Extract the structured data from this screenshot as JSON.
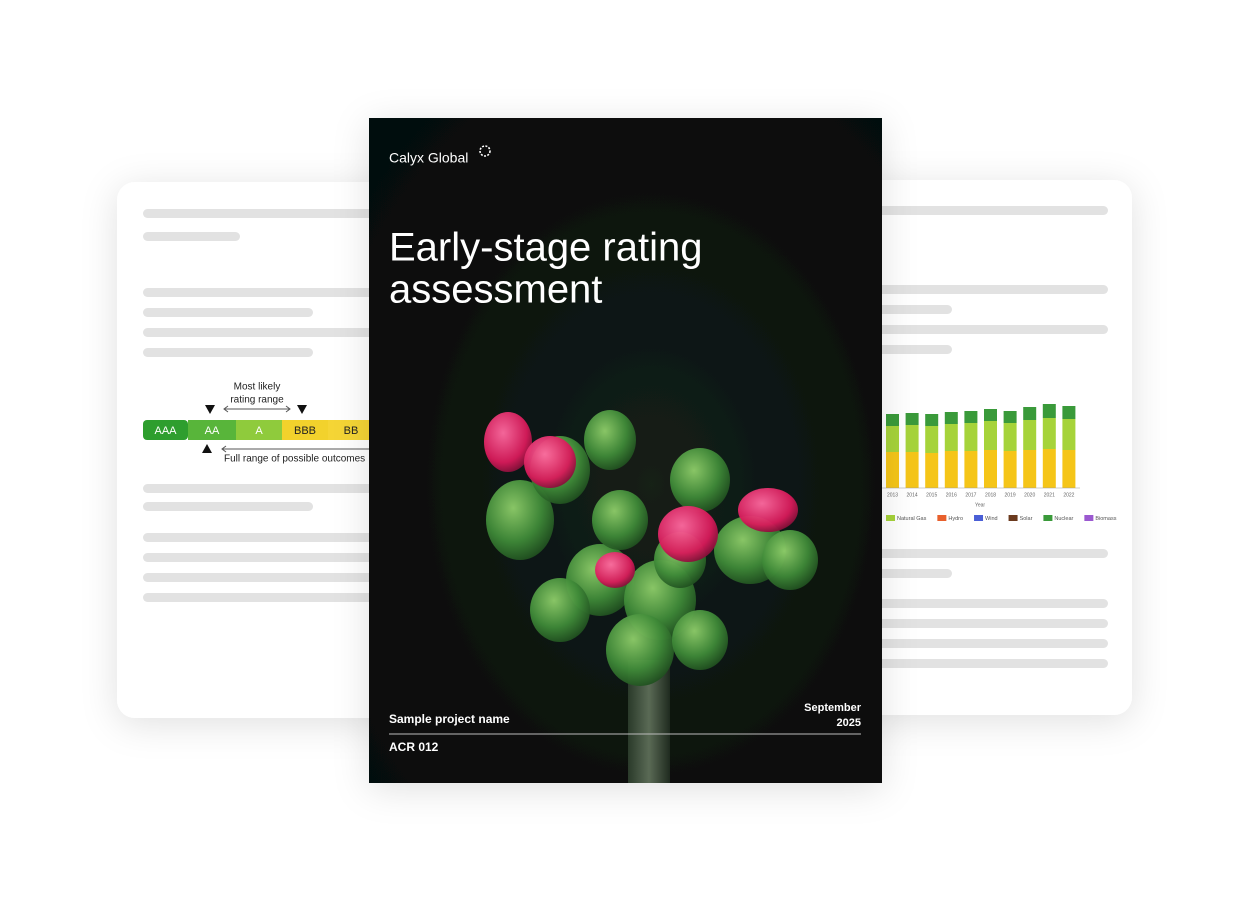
{
  "cover": {
    "brand": "Calyx Global",
    "title_lines": [
      "Early-stage rating",
      "assessment"
    ],
    "project": "Sample project name",
    "code": "ACR 012",
    "date_lines": [
      "September",
      "2025"
    ]
  },
  "rating_scale": {
    "annotation_lines": [
      "Most likely",
      "rating range"
    ],
    "grades": [
      {
        "label": "AAA",
        "color": "#2e9e2e"
      },
      {
        "label": "AA",
        "color": "#58b53a"
      },
      {
        "label": "A",
        "color": "#8fcb3c"
      },
      {
        "label": "BBB",
        "color": "#f2d22c"
      },
      {
        "label": "BB",
        "color": "#f5d535"
      }
    ],
    "range_note": "Full range of possible outcomes"
  },
  "chart_data": {
    "type": "bar",
    "stacked": true,
    "x_label": "Year",
    "categories": [
      "2013",
      "2014",
      "2015",
      "2016",
      "2017",
      "2018",
      "2019",
      "2020",
      "2021",
      "2022"
    ],
    "series": [
      {
        "color": "#f5c518",
        "values": [
          36,
          36,
          35,
          37,
          37,
          38,
          37,
          38,
          39,
          38
        ]
      },
      {
        "color": "#a6d33a",
        "values": [
          26,
          27,
          27,
          27,
          28,
          29,
          28,
          30,
          31,
          31
        ]
      },
      {
        "color": "#3a9a3a",
        "values": [
          12,
          12,
          12,
          12,
          12,
          12,
          12,
          13,
          14,
          13
        ]
      }
    ],
    "legend": [
      {
        "name": "Natural Gas",
        "color": "#a6d33a"
      },
      {
        "name": "Hydro",
        "color": "#e8602c"
      },
      {
        "name": "Wind",
        "color": "#4a5fd6"
      },
      {
        "name": "Solar",
        "color": "#6b3a1e"
      },
      {
        "name": "Nuclear",
        "color": "#3a9a3a"
      },
      {
        "name": "Biomass",
        "color": "#9b59d0"
      }
    ]
  }
}
